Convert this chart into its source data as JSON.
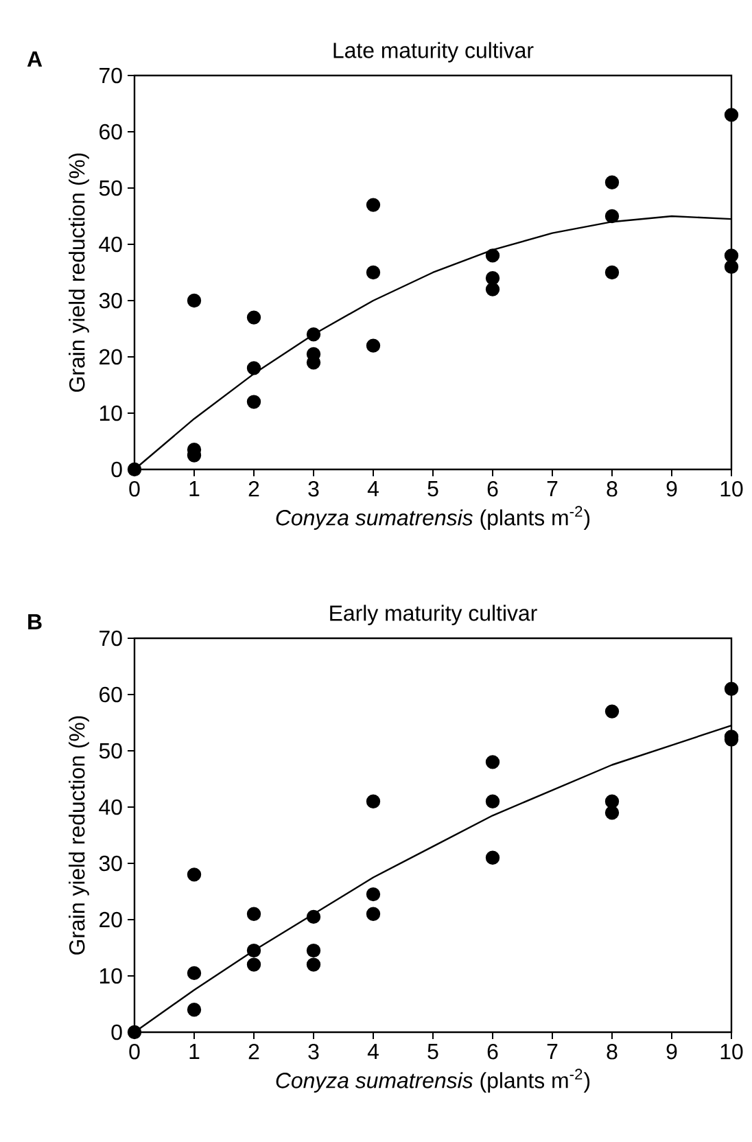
{
  "chart_data": [
    {
      "type": "scatter",
      "title": "Late maturity cultivar",
      "xlabel": "*Conyza sumatrensis* (plants m$^{-2}$)",
      "ylabel": "Grain yield reduction (%)",
      "annotations": [
        "A"
      ],
      "xlim": [
        0,
        10
      ],
      "ylim": [
        0,
        70
      ],
      "xticks": [
        0,
        1,
        2,
        3,
        4,
        5,
        6,
        7,
        8,
        9,
        10
      ],
      "yticks": [
        0,
        10,
        20,
        30,
        40,
        50,
        60,
        70
      ],
      "series": [
        {
          "marker": "circle",
          "color": "#000000",
          "x": [
            0,
            1,
            1,
            1,
            2,
            2,
            2,
            3,
            3,
            3,
            4,
            4,
            4,
            6,
            6,
            6,
            8,
            8,
            8,
            10,
            10,
            10
          ],
          "values": [
            0,
            30,
            3.5,
            2.5,
            27,
            18,
            12,
            24,
            20.5,
            19,
            47,
            35,
            22,
            38,
            34,
            32,
            51,
            45,
            35,
            63,
            38,
            36
          ]
        },
        {
          "type": "line",
          "marker": "none",
          "line_style": "solid",
          "color": "#000000",
          "x": [
            0,
            1,
            2,
            3,
            4,
            5,
            6,
            7,
            8,
            9,
            10
          ],
          "values": [
            0,
            9,
            17,
            24,
            30,
            35,
            39,
            42,
            44,
            45,
            44.5
          ]
        }
      ]
    },
    {
      "type": "scatter",
      "title": "Early maturity cultivar",
      "xlabel": "*Conyza sumatrensis* (plants m$^{-2}$)",
      "ylabel": "Grain yield reduction (%)",
      "annotations": [
        "B"
      ],
      "xlim": [
        0,
        10
      ],
      "ylim": [
        0,
        70
      ],
      "xticks": [
        0,
        1,
        2,
        3,
        4,
        5,
        6,
        7,
        8,
        9,
        10
      ],
      "yticks": [
        0,
        10,
        20,
        30,
        40,
        50,
        60,
        70
      ],
      "series": [
        {
          "marker": "circle",
          "color": "#000000",
          "x": [
            0,
            1,
            1,
            1,
            2,
            2,
            2,
            3,
            3,
            3,
            4,
            4,
            4,
            6,
            6,
            6,
            8,
            8,
            8,
            10,
            10,
            10
          ],
          "values": [
            0,
            28,
            10.5,
            4,
            21,
            14.5,
            12,
            20.5,
            14.5,
            12,
            41,
            24.5,
            21,
            48,
            41,
            31,
            57,
            41,
            39,
            61,
            52.5,
            52
          ]
        },
        {
          "type": "line",
          "marker": "none",
          "line_style": "solid",
          "color": "#000000",
          "x": [
            0,
            1,
            2,
            3,
            4,
            5,
            6,
            7,
            8,
            9,
            10
          ],
          "values": [
            0,
            7.5,
            14.5,
            21,
            27.5,
            33,
            38.5,
            43,
            47.5,
            51,
            54.5
          ]
        }
      ]
    }
  ]
}
